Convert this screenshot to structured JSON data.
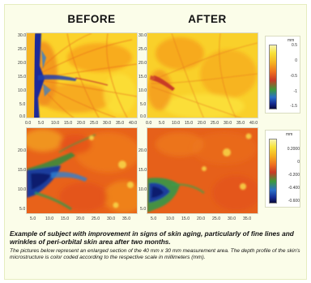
{
  "titles": {
    "before": "BEFORE",
    "after": "AFTER"
  },
  "maps": {
    "top_before": {
      "y_ticks": [
        "30.0",
        "25.0",
        "20.0",
        "15.0",
        "10.0",
        "5.0",
        "0.0"
      ],
      "x_ticks": [
        "0.0",
        "5.0",
        "10.0",
        "15.0",
        "20.0",
        "25.0",
        "30.0",
        "35.0",
        "40.0"
      ]
    },
    "top_after": {
      "y_ticks": [
        "30.0",
        "25.0",
        "20.0",
        "15.0",
        "10.0",
        "5.0",
        "0.0"
      ],
      "x_ticks": [
        "0.0",
        "5.0",
        "10.0",
        "15.0",
        "20.0",
        "25.0",
        "30.0",
        "35.0",
        "40.0"
      ]
    },
    "bottom_before": {
      "y_ticks": [
        "20.0",
        "15.0",
        "10.0",
        "5.0"
      ],
      "x_ticks": [
        "5.0",
        "10.0",
        "15.0",
        "20.0",
        "25.0",
        "30.0",
        "35.0"
      ]
    },
    "bottom_after": {
      "y_ticks": [
        "20.0",
        "15.0",
        "10.0",
        "5.0"
      ],
      "x_ticks": [
        "5.0",
        "10.0",
        "15.0",
        "20.0",
        "25.0",
        "30.0",
        "35.0"
      ]
    }
  },
  "scales": {
    "top": {
      "unit": "mm",
      "ticks": [
        "0.5",
        "0",
        "-0.5",
        "-1",
        "-1.5"
      ]
    },
    "bottom": {
      "unit": "mm",
      "ticks": [
        "0.2000",
        "0",
        "-0.200",
        "-0.400",
        "-0.600"
      ]
    }
  },
  "caption": {
    "headline": "Example of subject with improvement in signs of skin aging, particularly of fine lines and wrinkles of peri-orbital skin area after two months.",
    "note": "The pictures below represent an enlarged section of the 40 mm x 30 mm measurement area. The depth profile of the skin's microstructure is color coded according to the respective scale in millimeters (mm)."
  }
}
